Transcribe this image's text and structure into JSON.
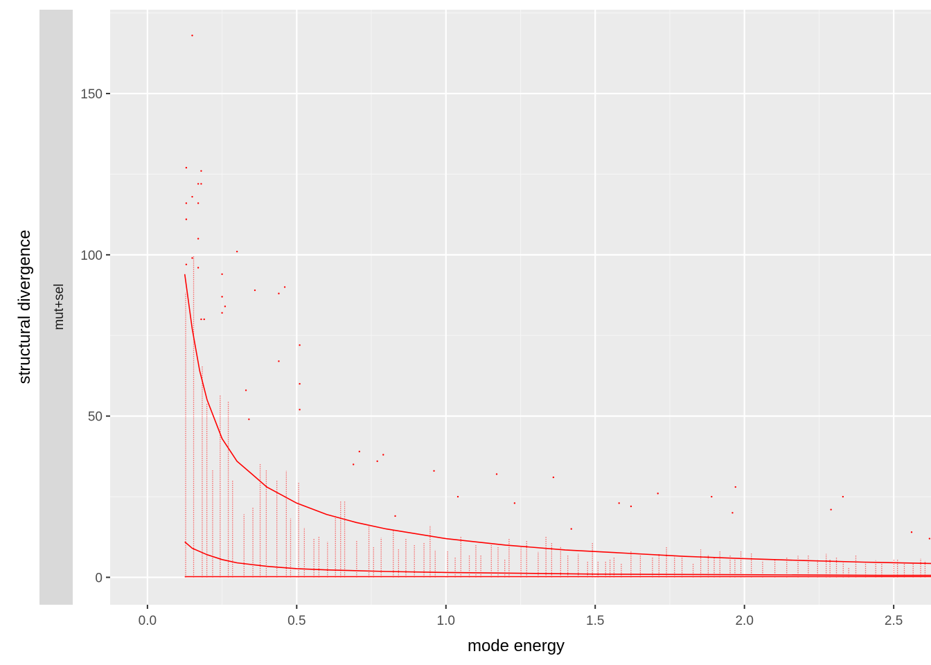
{
  "chart_data": {
    "type": "scatter",
    "title": "",
    "xlabel": "mode energy",
    "ylabel": "structural divergence",
    "facet_label": "mut+sel",
    "xlim": [
      -0.125,
      2.625
    ],
    "ylim": [
      -8.5,
      176
    ],
    "x_ticks": [
      0.0,
      0.5,
      1.0,
      1.5,
      2.0,
      2.5
    ],
    "x_tick_labels": [
      "0.0",
      "0.5",
      "1.0",
      "1.5",
      "2.0",
      "2.5"
    ],
    "y_ticks": [
      0,
      50,
      100,
      150
    ],
    "y_tick_labels": [
      "0",
      "50",
      "100",
      "150"
    ],
    "grid": true,
    "legend": "none",
    "colors": {
      "panel_background": "#ebebeb",
      "grid_major": "#ffffff",
      "grid_minor": "#f5f5f5",
      "strip_background": "#d9d9d9",
      "series": "#ff0000"
    },
    "series": [
      {
        "kind": "points",
        "color": "#ff0000",
        "sample_points": [
          [
            0.15,
            168
          ],
          [
            0.13,
            127
          ],
          [
            0.18,
            126
          ],
          [
            0.17,
            122
          ],
          [
            0.18,
            122
          ],
          [
            0.15,
            118
          ],
          [
            0.13,
            116
          ],
          [
            0.17,
            116
          ],
          [
            0.13,
            111
          ],
          [
            0.17,
            105
          ],
          [
            0.3,
            101
          ],
          [
            0.15,
            99
          ],
          [
            0.13,
            97
          ],
          [
            0.17,
            96
          ],
          [
            0.25,
            94
          ],
          [
            0.46,
            90
          ],
          [
            0.36,
            89
          ],
          [
            0.44,
            88
          ],
          [
            0.25,
            87
          ],
          [
            0.26,
            84
          ],
          [
            0.25,
            82
          ],
          [
            0.18,
            80
          ],
          [
            0.19,
            80
          ],
          [
            0.51,
            72
          ],
          [
            0.44,
            67
          ],
          [
            0.51,
            60
          ],
          [
            0.33,
            58
          ],
          [
            0.51,
            52
          ],
          [
            0.34,
            49
          ],
          [
            0.71,
            39
          ],
          [
            0.79,
            38
          ],
          [
            0.77,
            36
          ],
          [
            0.69,
            35
          ],
          [
            0.96,
            33
          ],
          [
            1.17,
            32
          ],
          [
            1.36,
            31
          ],
          [
            1.97,
            28
          ],
          [
            1.04,
            25
          ],
          [
            1.71,
            26
          ],
          [
            1.89,
            25
          ],
          [
            2.33,
            25
          ],
          [
            1.23,
            23
          ],
          [
            1.58,
            23
          ],
          [
            1.62,
            22
          ],
          [
            2.29,
            21
          ],
          [
            1.96,
            20
          ],
          [
            2.62,
            12
          ],
          [
            2.56,
            14
          ],
          [
            1.42,
            15
          ],
          [
            0.83,
            19
          ]
        ]
      },
      {
        "kind": "line",
        "name": "",
        "color": "#ff0000",
        "x": [
          0.125,
          0.15,
          0.175,
          0.2,
          0.25,
          0.3,
          0.35,
          0.4,
          0.5,
          0.6,
          0.7,
          0.8,
          1.0,
          1.2,
          1.4,
          1.6,
          1.8,
          2.0,
          2.2,
          2.4,
          2.625
        ],
        "y": [
          94,
          77,
          64,
          55,
          43,
          36,
          32,
          28,
          23,
          19.5,
          17,
          15,
          12,
          10,
          8.5,
          7.5,
          6.5,
          5.8,
          5.2,
          4.7,
          4.3
        ]
      },
      {
        "kind": "line",
        "name": "",
        "color": "#ff0000",
        "x": [
          0.125,
          0.15,
          0.2,
          0.25,
          0.3,
          0.4,
          0.5,
          0.6,
          0.8,
          1.0,
          1.5,
          2.0,
          2.5,
          2.625
        ],
        "y": [
          11,
          9,
          7,
          5.5,
          4.5,
          3.4,
          2.7,
          2.3,
          1.8,
          1.5,
          1.0,
          0.8,
          0.6,
          0.6
        ]
      },
      {
        "kind": "line",
        "name": "",
        "color": "#ff0000",
        "x": [
          0.125,
          2.625
        ],
        "y": [
          0.2,
          0.2
        ]
      }
    ]
  }
}
